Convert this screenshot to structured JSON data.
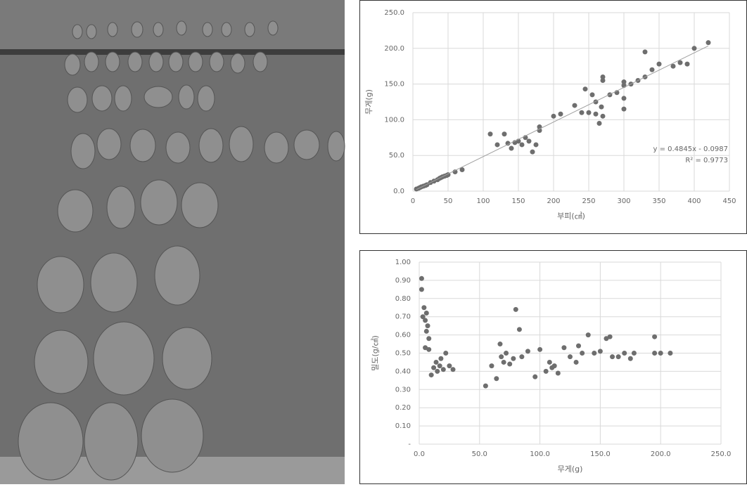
{
  "chart_data": [
    {
      "type": "scatter",
      "color": "#6e6e6e",
      "grid": true,
      "x_label": "부피(㎤)",
      "y_label": "무게(g)",
      "xlim": [
        0,
        450
      ],
      "xticks": [
        0,
        50,
        100,
        150,
        200,
        250,
        300,
        350,
        400,
        450
      ],
      "ylim": [
        0,
        250
      ],
      "yticks": [
        {
          "value": 0,
          "label": "0.0"
        },
        {
          "value": 50,
          "label": "50.0"
        },
        {
          "value": 100,
          "label": "100.0"
        },
        {
          "value": 150,
          "label": "150.0"
        },
        {
          "value": 200,
          "label": "200.0"
        },
        {
          "value": 250,
          "label": "250.0"
        }
      ],
      "x": [
        5,
        8,
        10,
        12,
        15,
        18,
        20,
        25,
        30,
        35,
        38,
        40,
        42,
        45,
        48,
        50,
        60,
        70,
        110,
        120,
        130,
        135,
        140,
        145,
        150,
        155,
        160,
        165,
        170,
        175,
        180,
        180,
        200,
        210,
        230,
        240,
        245,
        250,
        255,
        260,
        260,
        265,
        268,
        270,
        270,
        270,
        280,
        290,
        300,
        300,
        300,
        300,
        310,
        320,
        330,
        330,
        340,
        350,
        370,
        380,
        390,
        400,
        420
      ],
      "values": [
        3,
        4,
        5,
        6,
        7,
        8,
        9,
        12,
        14,
        16,
        18,
        19,
        20,
        21,
        22,
        23,
        27,
        30,
        80,
        65,
        80,
        67,
        60,
        68,
        70,
        65,
        75,
        70,
        55,
        65,
        85,
        90,
        105,
        108,
        120,
        110,
        143,
        110,
        135,
        108,
        125,
        95,
        118,
        105,
        155,
        160,
        135,
        138,
        115,
        130,
        148,
        153,
        150,
        155,
        195,
        160,
        170,
        178,
        175,
        180,
        178,
        200,
        208
      ],
      "trendline": {
        "slope": 0.4845,
        "intercept": -0.0987
      },
      "annotations": [
        "y = 0.4845x - 0.0987",
        "R² = 0.9773"
      ]
    },
    {
      "type": "scatter",
      "color": "#6e6e6e",
      "grid": true,
      "x_label": "무게(g)",
      "y_label": "밀도(g/㎤)",
      "xlim": [
        0,
        250
      ],
      "xticks": [
        {
          "value": 0,
          "label": "0.0"
        },
        {
          "value": 50,
          "label": "50.0"
        },
        {
          "value": 100,
          "label": "100.0"
        },
        {
          "value": 150,
          "label": "150.0"
        },
        {
          "value": 200,
          "label": "200.0"
        },
        {
          "value": 250,
          "label": "250.0"
        }
      ],
      "ylim": [
        0,
        1
      ],
      "yticks": [
        {
          "value": 0,
          "label": "-"
        },
        {
          "value": 0.1,
          "label": "0.10"
        },
        {
          "value": 0.2,
          "label": "0.20"
        },
        {
          "value": 0.3,
          "label": "0.30"
        },
        {
          "value": 0.4,
          "label": "0.40"
        },
        {
          "value": 0.5,
          "label": "0.50"
        },
        {
          "value": 0.6,
          "label": "0.60"
        },
        {
          "value": 0.7,
          "label": "0.70"
        },
        {
          "value": 0.8,
          "label": "0.80"
        },
        {
          "value": 0.9,
          "label": "0.90"
        },
        {
          "value": 1,
          "label": "1.00"
        }
      ],
      "x": [
        2,
        2,
        3,
        4,
        5,
        6,
        6,
        7,
        8,
        5,
        8,
        10,
        12,
        14,
        15,
        17,
        18,
        20,
        22,
        25,
        28,
        55,
        60,
        64,
        67,
        68,
        70,
        72,
        75,
        78,
        80,
        83,
        85,
        90,
        96,
        100,
        105,
        108,
        110,
        112,
        115,
        120,
        125,
        130,
        132,
        135,
        140,
        145,
        150,
        155,
        158,
        160,
        165,
        170,
        175,
        178,
        195,
        195,
        200,
        208
      ],
      "values": [
        0.91,
        0.85,
        0.7,
        0.75,
        0.68,
        0.72,
        0.62,
        0.65,
        0.58,
        0.53,
        0.52,
        0.38,
        0.42,
        0.45,
        0.4,
        0.43,
        0.47,
        0.41,
        0.5,
        0.43,
        0.41,
        0.32,
        0.43,
        0.36,
        0.55,
        0.48,
        0.45,
        0.5,
        0.44,
        0.47,
        0.74,
        0.63,
        0.48,
        0.51,
        0.37,
        0.52,
        0.4,
        0.45,
        0.42,
        0.43,
        0.39,
        0.53,
        0.48,
        0.45,
        0.54,
        0.5,
        0.6,
        0.5,
        0.51,
        0.58,
        0.59,
        0.48,
        0.48,
        0.5,
        0.47,
        0.5,
        0.59,
        0.5,
        0.5,
        0.5
      ]
    }
  ]
}
